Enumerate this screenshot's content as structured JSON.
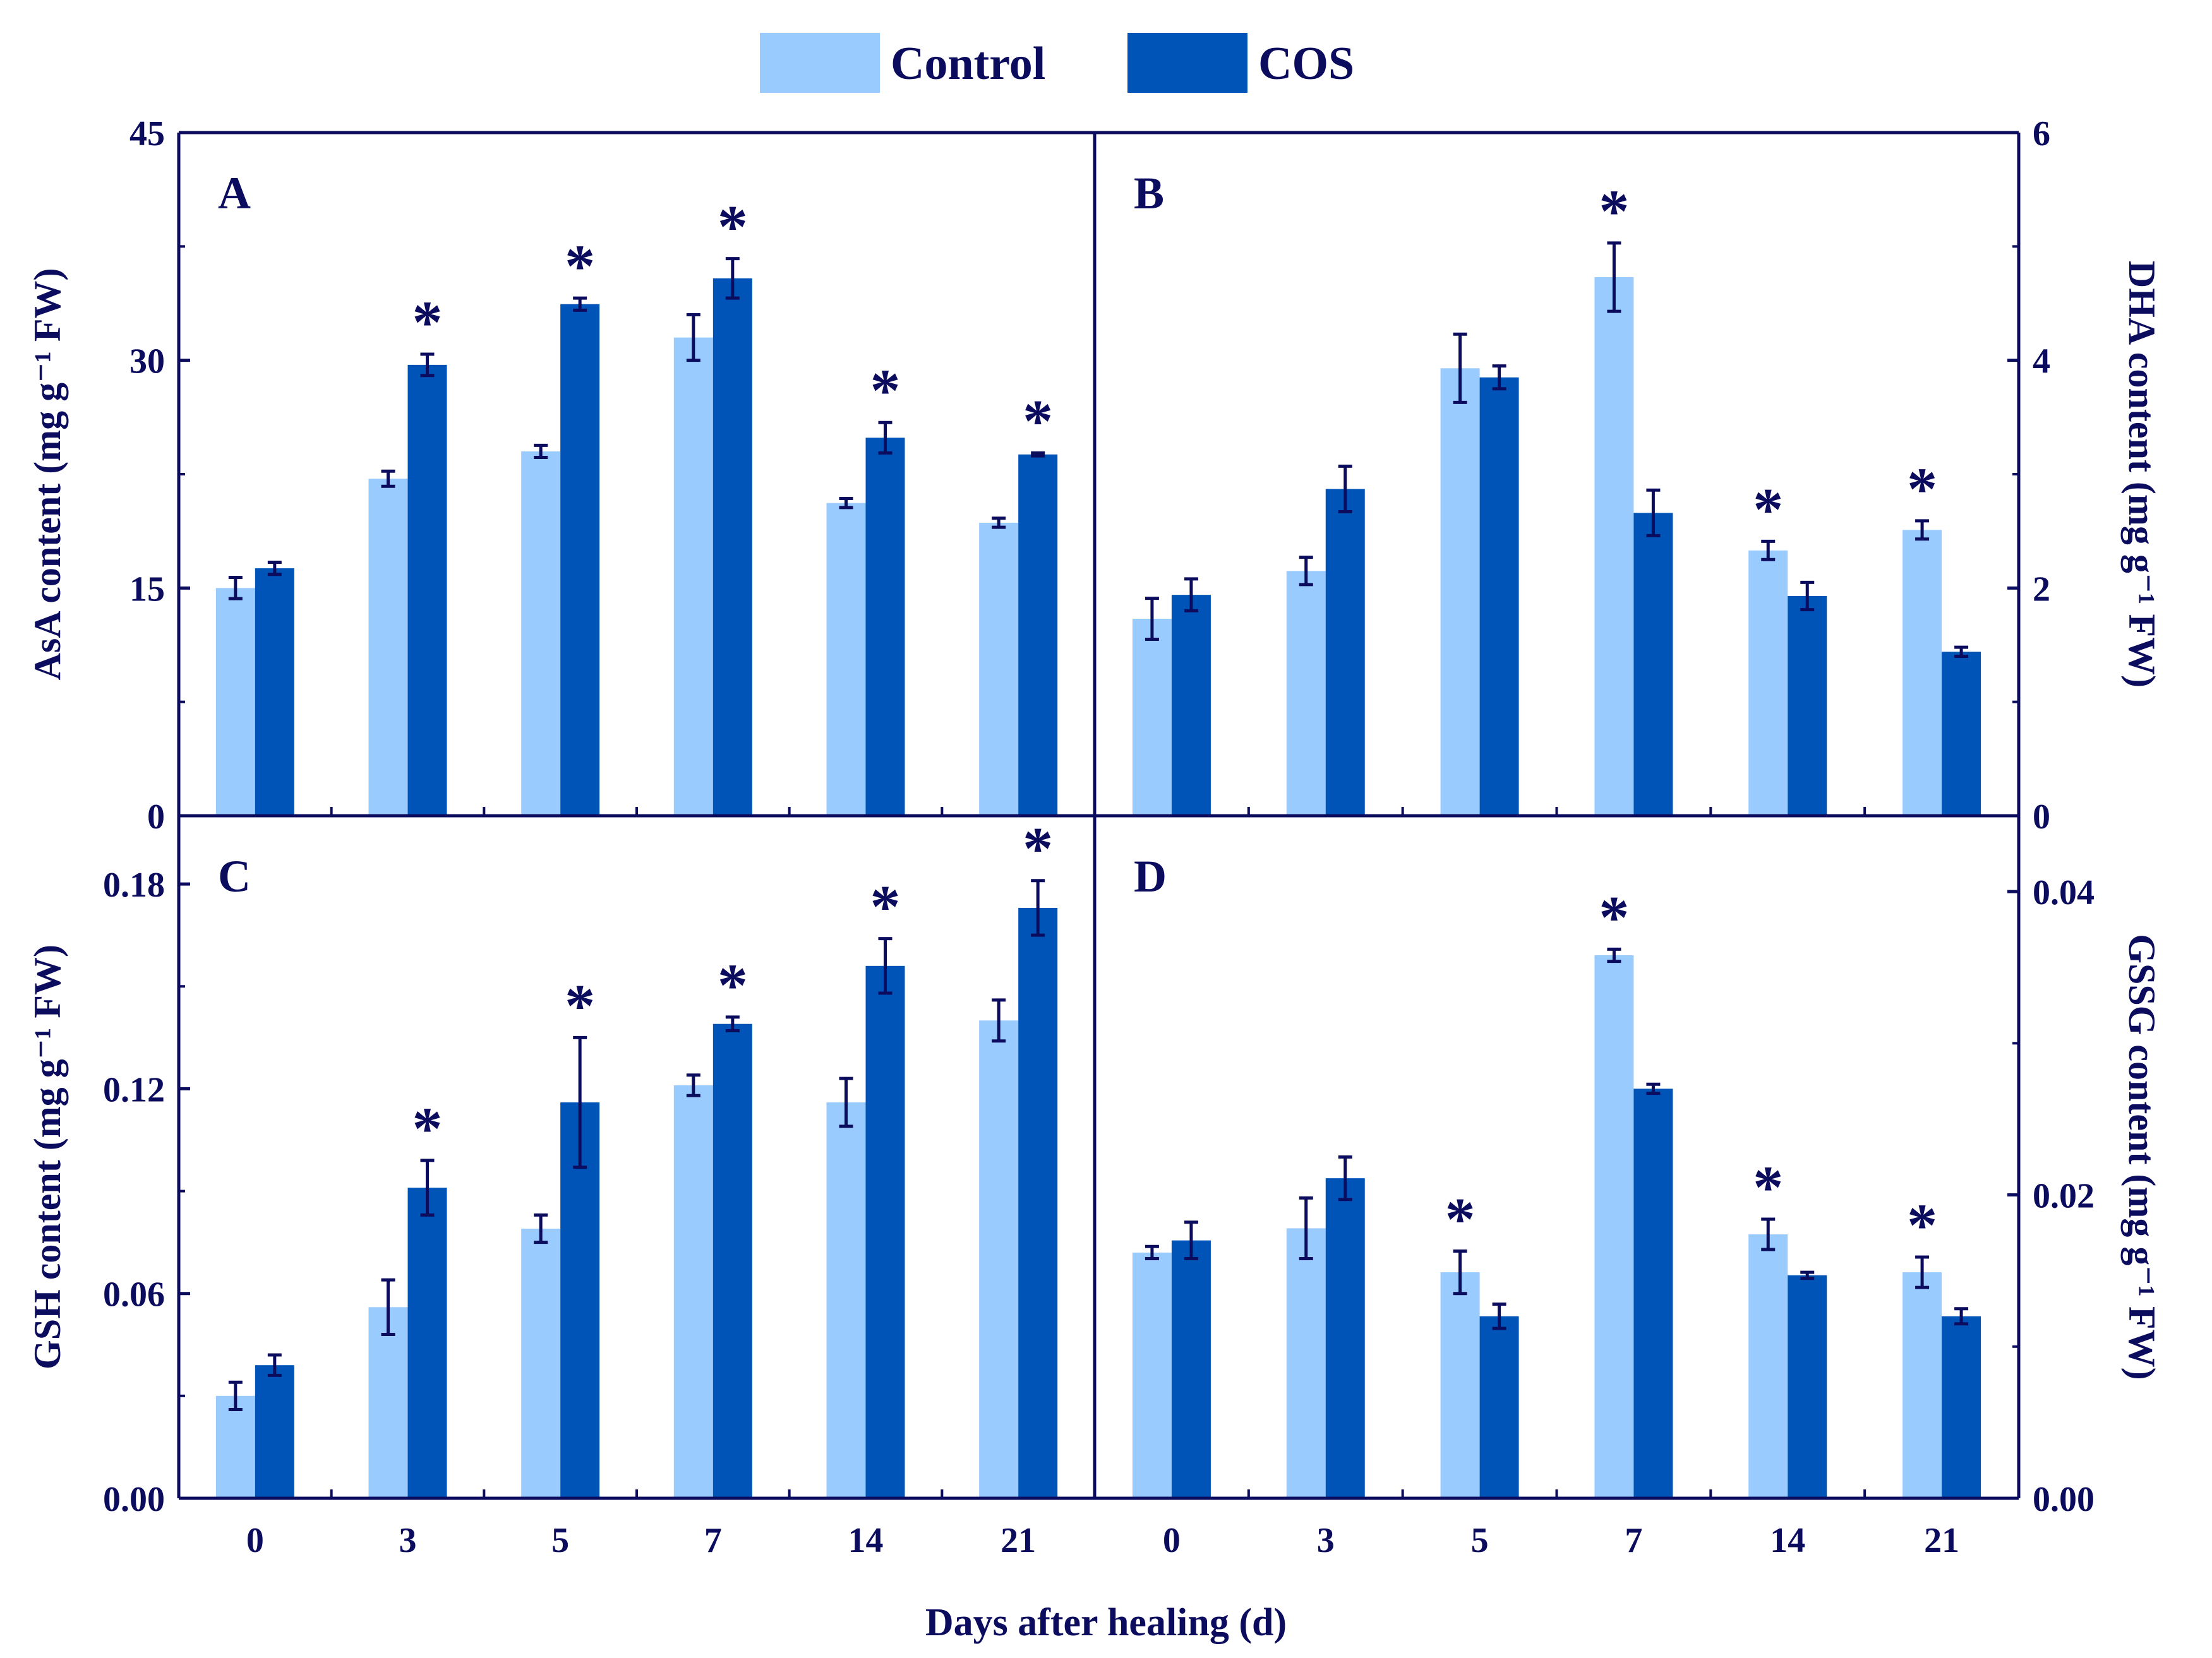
{
  "chart_data": [
    {
      "type": "bar",
      "panel": "A",
      "title": "A",
      "categories": [
        "0",
        "3",
        "5",
        "7",
        "14",
        "21"
      ],
      "xlabel": "",
      "ylabel": "AsA content (mg g⁻¹ FW)",
      "ylim": [
        0,
        45
      ],
      "yticks": [
        "0",
        "15",
        "30",
        "45"
      ],
      "ytick_values": [
        0,
        15,
        30,
        45
      ],
      "yaxis_side": "left",
      "series": [
        {
          "name": "Control",
          "values": [
            15.0,
            22.2,
            24.0,
            31.5,
            20.6,
            19.3
          ],
          "errors": [
            0.7,
            0.5,
            0.4,
            1.5,
            0.3,
            0.3
          ]
        },
        {
          "name": "COS",
          "values": [
            16.3,
            29.7,
            33.7,
            35.4,
            24.9,
            23.8
          ],
          "errors": [
            0.4,
            0.7,
            0.4,
            1.3,
            1.0,
            0.1
          ]
        }
      ],
      "significant": [
        false,
        true,
        true,
        true,
        true,
        true
      ]
    },
    {
      "type": "bar",
      "panel": "B",
      "title": "B",
      "categories": [
        "0",
        "3",
        "5",
        "7",
        "14",
        "21"
      ],
      "xlabel": "",
      "ylabel": "DHA content (mg g⁻¹ FW)",
      "ylim": [
        0,
        6
      ],
      "yticks": [
        "0",
        "2",
        "4",
        "6"
      ],
      "ytick_values": [
        0,
        2,
        4,
        6
      ],
      "yaxis_side": "right",
      "series": [
        {
          "name": "Control",
          "values": [
            1.73,
            2.15,
            3.93,
            4.73,
            2.33,
            2.51
          ],
          "errors": [
            0.18,
            0.12,
            0.3,
            0.3,
            0.08,
            0.08
          ]
        },
        {
          "name": "COS",
          "values": [
            1.94,
            2.87,
            3.85,
            2.66,
            1.93,
            1.44
          ],
          "errors": [
            0.14,
            0.2,
            0.1,
            0.2,
            0.12,
            0.04
          ]
        }
      ],
      "significant": [
        false,
        false,
        false,
        true,
        true,
        true
      ]
    },
    {
      "type": "bar",
      "panel": "C",
      "title": "C",
      "categories": [
        "0",
        "3",
        "5",
        "7",
        "14",
        "21"
      ],
      "xlabel": "Days after healing (d)",
      "ylabel": "GSH content (mg g⁻¹ FW)",
      "ylim": [
        0,
        0.2
      ],
      "yticks": [
        "0.00",
        "0.06",
        "0.12",
        "0.18"
      ],
      "ytick_values": [
        0,
        0.06,
        0.12,
        0.18
      ],
      "yaxis_side": "left",
      "series": [
        {
          "name": "Control",
          "values": [
            0.03,
            0.056,
            0.079,
            0.121,
            0.116,
            0.14
          ],
          "errors": [
            0.004,
            0.008,
            0.004,
            0.003,
            0.007,
            0.006
          ]
        },
        {
          "name": "COS",
          "values": [
            0.039,
            0.091,
            0.116,
            0.139,
            0.156,
            0.173
          ],
          "errors": [
            0.003,
            0.008,
            0.019,
            0.002,
            0.008,
            0.008
          ]
        }
      ],
      "significant": [
        false,
        true,
        true,
        true,
        true,
        true
      ]
    },
    {
      "type": "bar",
      "panel": "D",
      "title": "D",
      "categories": [
        "0",
        "3",
        "5",
        "7",
        "14",
        "21"
      ],
      "xlabel": "Days after healing (d)",
      "ylabel": "GSSG content (mg g⁻¹ FW)",
      "ylim": [
        0,
        0.045
      ],
      "yticks": [
        "0.00",
        "0.02",
        "0.04"
      ],
      "ytick_values": [
        0,
        0.02,
        0.04
      ],
      "yaxis_side": "right",
      "series": [
        {
          "name": "Control",
          "values": [
            0.0162,
            0.0178,
            0.0149,
            0.0358,
            0.0174,
            0.0149
          ],
          "errors": [
            0.0004,
            0.002,
            0.0014,
            0.0004,
            0.001,
            0.001
          ]
        },
        {
          "name": "COS",
          "values": [
            0.017,
            0.0211,
            0.012,
            0.027,
            0.0147,
            0.012
          ],
          "errors": [
            0.0012,
            0.0014,
            0.0008,
            0.0003,
            0.0002,
            0.0005
          ]
        }
      ],
      "significant": [
        false,
        false,
        true,
        true,
        true,
        true
      ]
    }
  ],
  "legend": {
    "control_label": "Control",
    "cos_label": "COS",
    "control_color": "#99cbff",
    "cos_color": "#0054b8"
  },
  "axis_color": "#0c0c5e",
  "significance_marker": "*",
  "shared_xlabel": "Days after healing (d)"
}
